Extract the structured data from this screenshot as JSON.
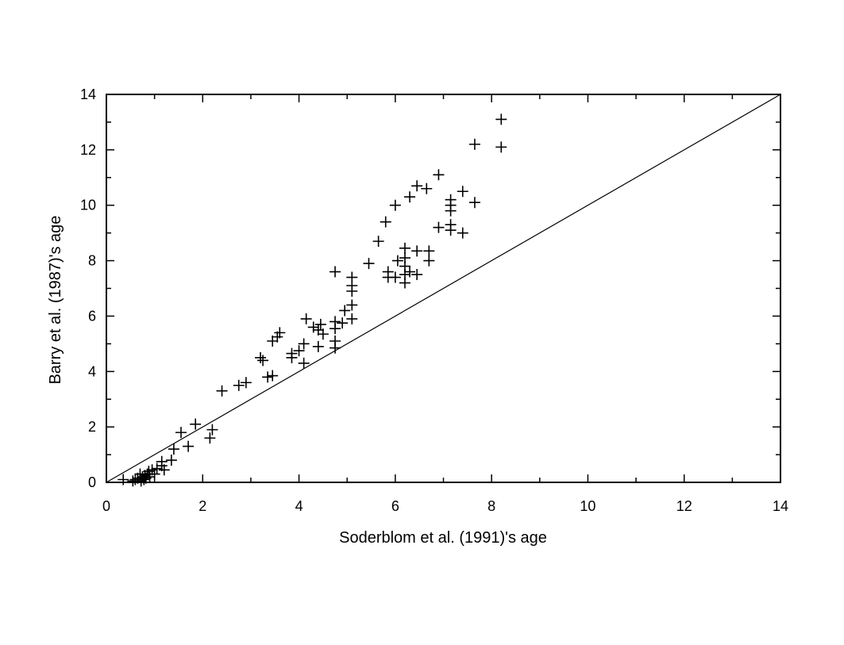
{
  "chart_data": {
    "type": "scatter",
    "title": "",
    "xlabel": "Soderblom et al. (1991)'s age",
    "ylabel": "Barry et al. (1987)'s age",
    "xlim": [
      0,
      14
    ],
    "ylim": [
      0,
      14
    ],
    "xticks": [
      "0",
      "2",
      "4",
      "6",
      "8",
      "10",
      "12",
      "14"
    ],
    "yticks": [
      "0",
      "2",
      "4",
      "6",
      "8",
      "10",
      "12",
      "14"
    ],
    "grid": false,
    "marker": "plus",
    "reference_line": {
      "from": [
        0,
        0
      ],
      "to": [
        14,
        14
      ]
    },
    "points": [
      [
        0.35,
        0.1
      ],
      [
        0.55,
        0.05
      ],
      [
        0.6,
        0.1
      ],
      [
        0.65,
        0.15
      ],
      [
        0.7,
        0.3
      ],
      [
        0.72,
        0.05
      ],
      [
        0.75,
        0.2
      ],
      [
        0.78,
        0.1
      ],
      [
        0.8,
        0.25
      ],
      [
        0.82,
        0.15
      ],
      [
        0.85,
        0.3
      ],
      [
        0.88,
        0.4
      ],
      [
        0.9,
        0.2
      ],
      [
        0.95,
        0.45
      ],
      [
        1.0,
        0.3
      ],
      [
        1.05,
        0.5
      ],
      [
        1.15,
        0.6
      ],
      [
        1.15,
        0.75
      ],
      [
        1.2,
        0.45
      ],
      [
        1.35,
        0.8
      ],
      [
        1.4,
        1.2
      ],
      [
        1.55,
        1.8
      ],
      [
        1.7,
        1.3
      ],
      [
        1.85,
        2.1
      ],
      [
        2.15,
        1.6
      ],
      [
        2.2,
        1.9
      ],
      [
        2.4,
        3.3
      ],
      [
        2.75,
        3.5
      ],
      [
        2.9,
        3.6
      ],
      [
        3.2,
        4.5
      ],
      [
        3.25,
        4.4
      ],
      [
        3.35,
        3.8
      ],
      [
        3.45,
        3.85
      ],
      [
        3.45,
        5.1
      ],
      [
        3.55,
        5.25
      ],
      [
        3.6,
        5.4
      ],
      [
        3.85,
        4.5
      ],
      [
        3.85,
        4.65
      ],
      [
        4.0,
        4.75
      ],
      [
        4.1,
        4.3
      ],
      [
        4.1,
        5.0
      ],
      [
        4.15,
        5.9
      ],
      [
        4.3,
        5.6
      ],
      [
        4.4,
        4.9
      ],
      [
        4.4,
        5.5
      ],
      [
        4.45,
        5.7
      ],
      [
        4.5,
        5.35
      ],
      [
        4.75,
        7.6
      ],
      [
        4.75,
        4.85
      ],
      [
        4.75,
        5.1
      ],
      [
        4.75,
        5.55
      ],
      [
        4.75,
        5.8
      ],
      [
        4.9,
        5.75
      ],
      [
        4.95,
        6.2
      ],
      [
        5.1,
        5.9
      ],
      [
        5.1,
        6.4
      ],
      [
        5.1,
        6.9
      ],
      [
        5.1,
        7.1
      ],
      [
        5.1,
        7.4
      ],
      [
        5.45,
        7.9
      ],
      [
        5.65,
        8.7
      ],
      [
        5.8,
        9.4
      ],
      [
        5.85,
        7.4
      ],
      [
        5.85,
        7.6
      ],
      [
        6.0,
        10.0
      ],
      [
        6.0,
        7.4
      ],
      [
        6.05,
        8.0
      ],
      [
        6.2,
        7.2
      ],
      [
        6.2,
        7.5
      ],
      [
        6.2,
        7.8
      ],
      [
        6.2,
        8.1
      ],
      [
        6.2,
        8.45
      ],
      [
        6.3,
        7.6
      ],
      [
        6.3,
        10.3
      ],
      [
        6.45,
        10.7
      ],
      [
        6.45,
        8.35
      ],
      [
        6.45,
        7.5
      ],
      [
        6.65,
        10.6
      ],
      [
        6.7,
        8.0
      ],
      [
        6.7,
        8.35
      ],
      [
        6.9,
        11.1
      ],
      [
        6.9,
        9.2
      ],
      [
        7.15,
        9.1
      ],
      [
        7.15,
        9.3
      ],
      [
        7.15,
        9.8
      ],
      [
        7.15,
        10.0
      ],
      [
        7.15,
        10.2
      ],
      [
        7.4,
        10.5
      ],
      [
        7.4,
        9.0
      ],
      [
        7.65,
        10.1
      ],
      [
        7.65,
        12.2
      ],
      [
        8.2,
        12.1
      ],
      [
        8.2,
        13.1
      ]
    ]
  }
}
